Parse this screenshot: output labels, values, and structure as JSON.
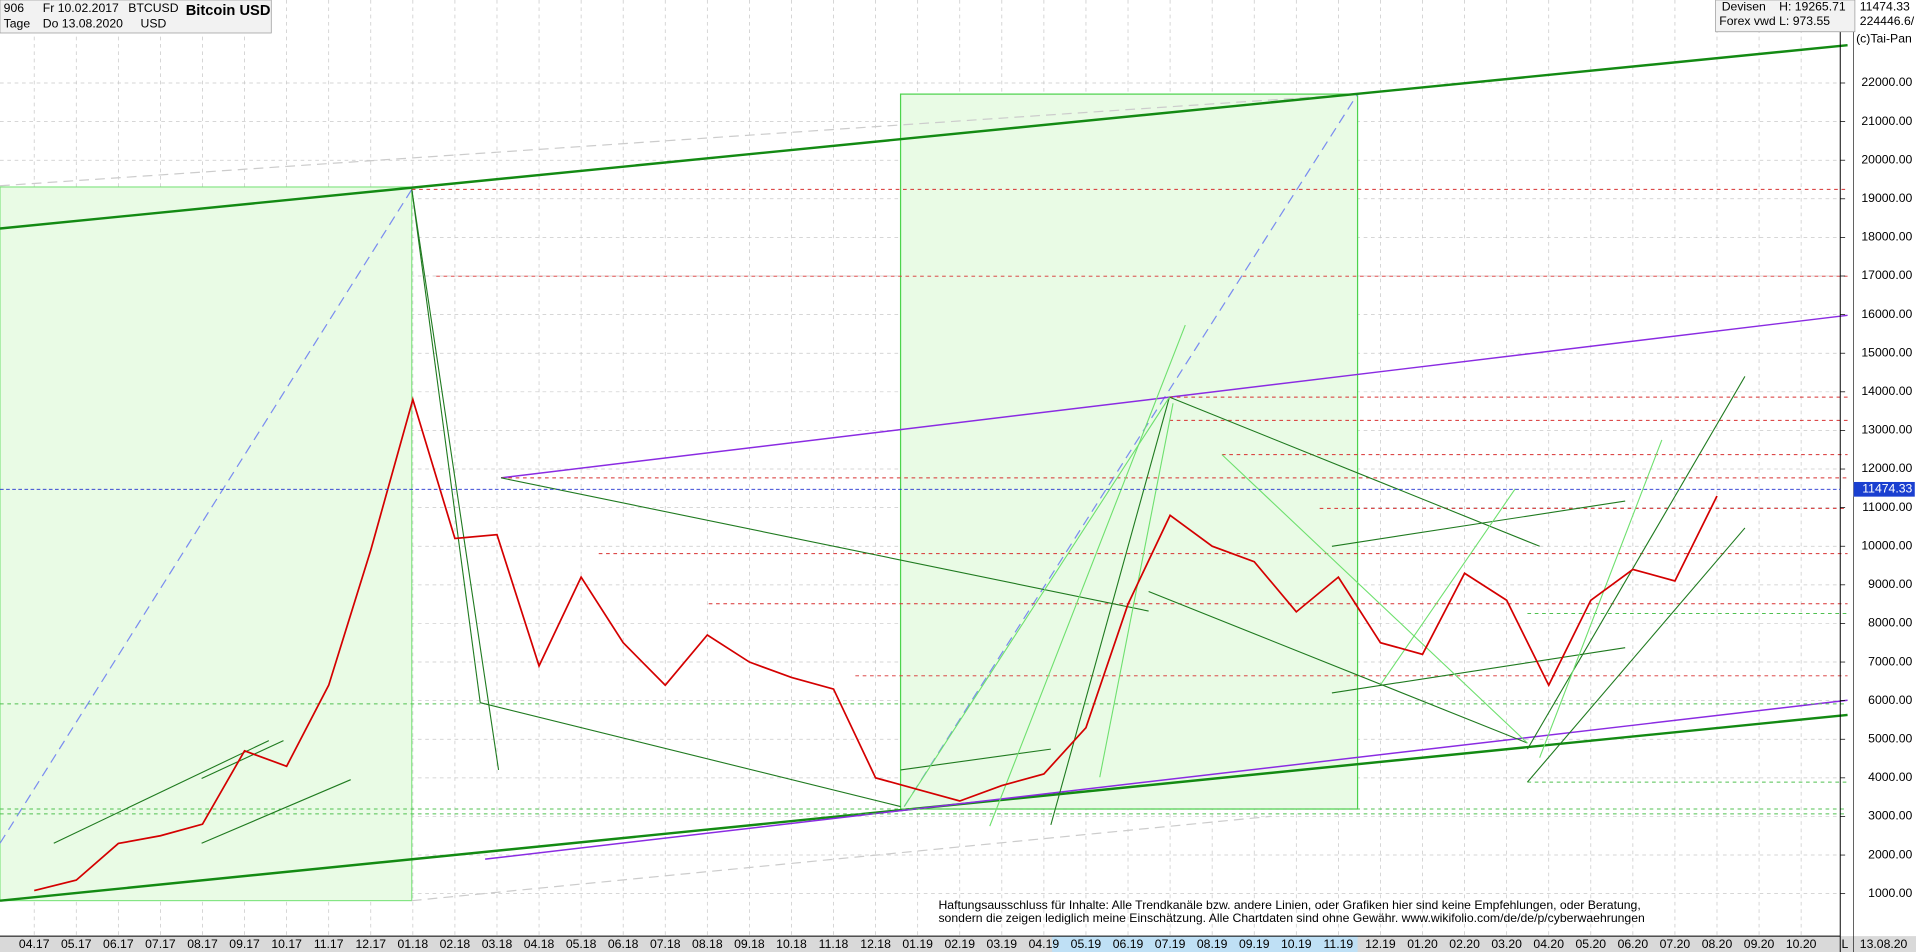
{
  "header": {
    "count": "906",
    "start": "Fr 10.02.2017",
    "period": "Tage",
    "end": "Do 13.08.2020",
    "symbol": "BTCUSD",
    "currency": "USD",
    "info_type": "Devisen",
    "info_source": "Forex vwd",
    "high": "H: 19265.71",
    "low": "L: 973.55",
    "last": "11474.33",
    "volume": "224446.6/",
    "copyright": "(c)Tai-Pan"
  },
  "chart_data": {
    "type": "line",
    "title": "Bitcoin USD",
    "categories": [
      "04.17",
      "05.17",
      "06.17",
      "07.17",
      "08.17",
      "09.17",
      "10.17",
      "11.17",
      "12.17",
      "01.18",
      "02.18",
      "03.18",
      "04.18",
      "05.18",
      "06.18",
      "07.18",
      "08.18",
      "09.18",
      "10.18",
      "11.18",
      "12.18",
      "01.19",
      "02.19",
      "03.19",
      "04.19",
      "05.19",
      "06.19",
      "07.19",
      "08.19",
      "09.19",
      "10.19",
      "11.19",
      "12.19",
      "01.20",
      "02.20",
      "03.20",
      "04.20",
      "05.20",
      "06.20",
      "07.20",
      "08.20",
      "09.20",
      "10.20"
    ],
    "values": [
      1080,
      1350,
      2300,
      2500,
      2800,
      4700,
      4300,
      6400,
      9900,
      13800,
      10200,
      10300,
      6900,
      9200,
      7500,
      6400,
      7700,
      7000,
      6600,
      6300,
      4000,
      3700,
      3400,
      3800,
      4100,
      5300,
      8500,
      10800,
      10000,
      9600,
      8300,
      9200,
      7500,
      7200,
      9300,
      8600,
      6400,
      8600,
      9400,
      9100,
      11300,
      null,
      null
    ],
    "color": "#d40000",
    "last_value": 11474.33,
    "ylim": [
      -100,
      24150
    ],
    "yticks": [
      {
        "value": 1000,
        "label": "1000.00"
      },
      {
        "value": 2000,
        "label": "2000.00"
      },
      {
        "value": 3000,
        "label": "3000.00"
      },
      {
        "value": 4000,
        "label": "4000.00"
      },
      {
        "value": 5000,
        "label": "5000.00"
      },
      {
        "value": 6000,
        "label": "6000.00"
      },
      {
        "value": 7000,
        "label": "7000.00"
      },
      {
        "value": 8000,
        "label": "8000.00"
      },
      {
        "value": 9000,
        "label": "9000.00"
      },
      {
        "value": 10000,
        "label": "10000.00"
      },
      {
        "value": 11000,
        "label": "11000.00"
      },
      {
        "value": 12000,
        "label": "12000.00"
      },
      {
        "value": 13000,
        "label": "13000.00"
      },
      {
        "value": 14000,
        "label": "14000.00"
      },
      {
        "value": 15000,
        "label": "15000.00"
      },
      {
        "value": 16000,
        "label": "16000.00"
      },
      {
        "value": 17000,
        "label": "17000.00"
      },
      {
        "value": 18000,
        "label": "18000.00"
      },
      {
        "value": 19000,
        "label": "19000.00"
      },
      {
        "value": 20000,
        "label": "20000.00"
      },
      {
        "value": 21000,
        "label": "21000.00"
      },
      {
        "value": 22000,
        "label": "22000.00"
      }
    ],
    "grid": true,
    "end_label": "13.08.20",
    "axis_mark": "L",
    "annotations": [
      "Haftungsausschluss für Inhalte: Alle Trendkanäle bzw. andere Linien, oder Grafiken hier sind keine Empfehlungen, oder Beratung,",
      "sondern die zeigen lediglich meine  Einschätzung. Alle Chartdaten sind ohne Gewähr.  www.wikifolio.com/de/de/p/cyberwaehrungen"
    ]
  }
}
